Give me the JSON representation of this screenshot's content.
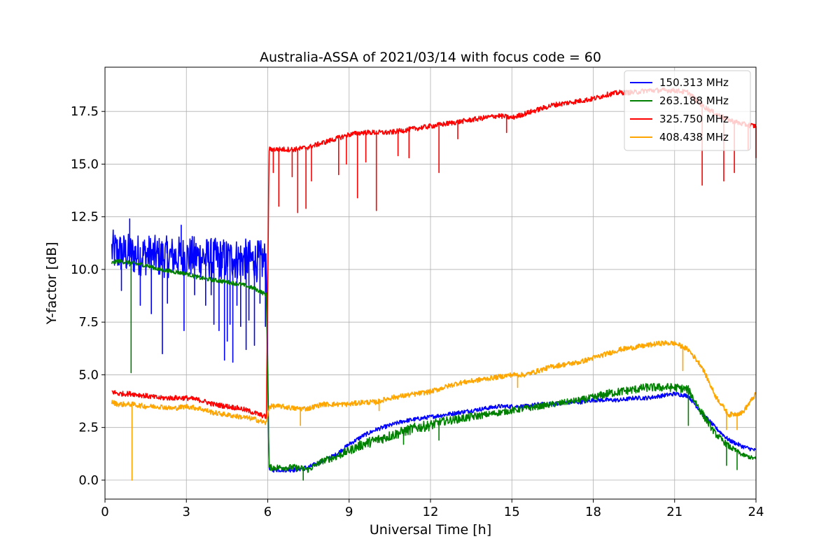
{
  "chart_data": {
    "type": "line",
    "title": "Australia-ASSA of 2021/03/14 with focus code = 60",
    "xlabel": "Universal Time [h]",
    "ylabel": "Y-factor [dB]",
    "xlim": [
      0,
      24
    ],
    "ylim": [
      -0.9,
      19.6
    ],
    "xticks": [
      0,
      3,
      6,
      9,
      12,
      15,
      18,
      21,
      24
    ],
    "xtick_labels": [
      "0",
      "3",
      "6",
      "9",
      "12",
      "15",
      "18",
      "21",
      "24"
    ],
    "yticks": [
      0,
      2.5,
      5,
      7.5,
      10,
      12.5,
      15,
      17.5
    ],
    "ytick_labels": [
      "0.0",
      "2.5",
      "5.0",
      "7.5",
      "10.0",
      "12.5",
      "15.0",
      "17.5"
    ],
    "grid": true,
    "legend_position": "top-right",
    "series": [
      {
        "name": "150.313 MHz",
        "color": "#0000ff",
        "x": [
          0.25,
          0.5,
          1,
          1.5,
          2,
          2.5,
          3,
          3.5,
          4,
          4.5,
          5,
          5.5,
          5.95,
          6.05,
          6.5,
          7,
          7.5,
          8,
          8.5,
          9,
          9.5,
          10,
          10.5,
          11,
          11.5,
          12,
          12.5,
          13,
          13.5,
          14,
          14.5,
          15,
          15.5,
          16,
          16.5,
          17,
          17.5,
          18,
          18.5,
          19,
          19.5,
          20,
          20.5,
          21,
          21.5,
          22,
          22.5,
          23,
          23.5,
          24
        ],
        "y": [
          10.9,
          10.8,
          10.7,
          10.7,
          10.6,
          10.6,
          10.6,
          10.6,
          10.5,
          10.5,
          10.5,
          10.4,
          10.4,
          0.5,
          0.5,
          0.5,
          0.6,
          0.9,
          1.2,
          1.7,
          2.1,
          2.4,
          2.6,
          2.8,
          2.9,
          3.0,
          3.1,
          3.2,
          3.3,
          3.4,
          3.5,
          3.5,
          3.5,
          3.6,
          3.6,
          3.7,
          3.7,
          3.8,
          3.8,
          3.8,
          3.9,
          3.9,
          4.0,
          4.1,
          4.0,
          3.2,
          2.5,
          1.9,
          1.6,
          1.4
        ],
        "spread": [
          1.0,
          1.0,
          1.0,
          1.0,
          1.0,
          1.0,
          1.0,
          1.0,
          1.0,
          1.0,
          1.0,
          1.0,
          1.0,
          0.12,
          0.12,
          0.12,
          0.12,
          0.1,
          0.1,
          0.1,
          0.1,
          0.1,
          0.1,
          0.1,
          0.1,
          0.1,
          0.1,
          0.1,
          0.1,
          0.1,
          0.1,
          0.1,
          0.1,
          0.1,
          0.1,
          0.1,
          0.1,
          0.1,
          0.1,
          0.1,
          0.1,
          0.1,
          0.1,
          0.1,
          0.1,
          0.1,
          0.1,
          0.1,
          0.1,
          0.1
        ],
        "dips": [
          [
            0.6,
            9.0
          ],
          [
            1.3,
            8.3
          ],
          [
            1.7,
            7.9
          ],
          [
            2.1,
            6.0
          ],
          [
            2.3,
            8.4
          ],
          [
            2.9,
            7.1
          ],
          [
            3.3,
            8.8
          ],
          [
            3.7,
            8.3
          ],
          [
            3.9,
            8.8
          ],
          [
            4.0,
            7.4
          ],
          [
            4.2,
            7.1
          ],
          [
            4.4,
            5.7
          ],
          [
            4.5,
            6.6
          ],
          [
            4.6,
            7.4
          ],
          [
            4.7,
            5.6
          ],
          [
            4.85,
            8.3
          ],
          [
            5.0,
            7.3
          ],
          [
            5.2,
            6.2
          ],
          [
            5.3,
            7.6
          ],
          [
            5.5,
            6.4
          ],
          [
            5.7,
            8.4
          ],
          [
            5.9,
            7.3
          ]
        ],
        "spikes": [
          [
            0.9,
            12.4
          ],
          [
            2.8,
            12.1
          ]
        ]
      },
      {
        "name": "263.188 MHz",
        "color": "#008000",
        "x": [
          0.25,
          0.5,
          1,
          1.5,
          2,
          2.5,
          3,
          3.5,
          4,
          4.5,
          5,
          5.5,
          5.95,
          6.05,
          6.5,
          7,
          7.5,
          8,
          8.5,
          9,
          9.5,
          10,
          10.5,
          11,
          11.5,
          12,
          12.5,
          13,
          13.5,
          14,
          14.5,
          15,
          15.5,
          16,
          16.5,
          17,
          17.5,
          18,
          18.5,
          19,
          19.5,
          20,
          20.5,
          21,
          21.5,
          22,
          22.5,
          23,
          23.5,
          24
        ],
        "y": [
          10.3,
          10.4,
          10.3,
          10.2,
          10.0,
          9.9,
          9.8,
          9.6,
          9.5,
          9.4,
          9.3,
          9.1,
          8.8,
          0.6,
          0.6,
          0.6,
          0.5,
          0.9,
          1.1,
          1.4,
          1.7,
          1.9,
          2.1,
          2.3,
          2.5,
          2.6,
          2.8,
          2.9,
          3.0,
          3.1,
          3.2,
          3.3,
          3.4,
          3.5,
          3.6,
          3.7,
          3.8,
          3.9,
          4.1,
          4.2,
          4.3,
          4.4,
          4.4,
          4.4,
          4.3,
          3.2,
          2.2,
          1.6,
          1.2,
          1.0
        ],
        "spread": [
          0.1,
          0.1,
          0.1,
          0.1,
          0.1,
          0.1,
          0.1,
          0.1,
          0.1,
          0.1,
          0.1,
          0.1,
          0.1,
          0.15,
          0.15,
          0.15,
          0.15,
          0.15,
          0.18,
          0.2,
          0.25,
          0.25,
          0.25,
          0.25,
          0.25,
          0.25,
          0.2,
          0.2,
          0.2,
          0.15,
          0.15,
          0.15,
          0.15,
          0.15,
          0.15,
          0.15,
          0.15,
          0.2,
          0.2,
          0.2,
          0.2,
          0.2,
          0.2,
          0.2,
          0.2,
          0.2,
          0.15,
          0.15,
          0.1,
          0.1
        ],
        "dips": [
          [
            0.95,
            5.1
          ],
          [
            7.3,
            0.0
          ],
          [
            11.0,
            1.7
          ],
          [
            12.3,
            1.9
          ],
          [
            21.5,
            2.6
          ],
          [
            22.9,
            0.7
          ],
          [
            23.3,
            0.5
          ]
        ],
        "spikes": []
      },
      {
        "name": "325.750 MHz",
        "color": "#ff0000",
        "x": [
          0.25,
          0.5,
          1,
          1.5,
          2,
          2.5,
          3,
          3.5,
          4,
          4.5,
          5,
          5.5,
          5.95,
          6.05,
          6.5,
          7,
          7.5,
          8,
          8.5,
          9,
          9.5,
          10,
          10.5,
          11,
          11.5,
          12,
          12.5,
          13,
          13.5,
          14,
          14.5,
          15,
          15.5,
          16,
          16.5,
          17,
          17.5,
          18,
          18.5,
          19,
          19.5,
          20,
          20.5,
          21,
          21.5,
          22,
          22.5,
          23,
          23.5,
          24
        ],
        "y": [
          4.2,
          4.1,
          4.1,
          4.0,
          3.9,
          3.9,
          3.9,
          3.8,
          3.6,
          3.5,
          3.4,
          3.2,
          3.0,
          15.7,
          15.7,
          15.7,
          15.8,
          16.0,
          16.2,
          16.4,
          16.5,
          16.5,
          16.5,
          16.6,
          16.7,
          16.8,
          16.9,
          17.0,
          17.1,
          17.2,
          17.3,
          17.2,
          17.4,
          17.6,
          17.8,
          17.9,
          18.0,
          18.1,
          18.3,
          18.4,
          18.4,
          18.5,
          18.5,
          18.5,
          18.4,
          17.8,
          17.4,
          17.1,
          16.9,
          16.8
        ],
        "spread": [
          0.12,
          0.12,
          0.12,
          0.12,
          0.12,
          0.12,
          0.12,
          0.12,
          0.12,
          0.12,
          0.12,
          0.12,
          0.12,
          0.12,
          0.12,
          0.12,
          0.12,
          0.12,
          0.12,
          0.12,
          0.12,
          0.12,
          0.12,
          0.12,
          0.12,
          0.12,
          0.12,
          0.12,
          0.12,
          0.12,
          0.12,
          0.12,
          0.12,
          0.12,
          0.12,
          0.12,
          0.12,
          0.12,
          0.12,
          0.12,
          0.12,
          0.12,
          0.12,
          0.12,
          0.12,
          0.12,
          0.12,
          0.12,
          0.12,
          0.12
        ],
        "dips": [
          [
            6.2,
            14.6
          ],
          [
            6.4,
            13.0
          ],
          [
            6.9,
            14.4
          ],
          [
            7.1,
            12.7
          ],
          [
            7.4,
            12.9
          ],
          [
            7.6,
            14.2
          ],
          [
            8.6,
            14.5
          ],
          [
            8.9,
            15.0
          ],
          [
            9.3,
            13.4
          ],
          [
            9.6,
            15.1
          ],
          [
            10.0,
            12.8
          ],
          [
            10.8,
            15.4
          ],
          [
            11.2,
            15.3
          ],
          [
            12.3,
            14.6
          ],
          [
            13.0,
            16.2
          ],
          [
            14.8,
            16.5
          ],
          [
            22.0,
            14.0
          ],
          [
            22.8,
            14.2
          ],
          [
            23.2,
            14.6
          ],
          [
            23.7,
            15.7
          ],
          [
            24.0,
            15.3
          ]
        ],
        "spikes": []
      },
      {
        "name": "408.438 MHz",
        "color": "#ffa500",
        "x": [
          0.25,
          0.5,
          1,
          1.5,
          2,
          2.5,
          3,
          3.5,
          4,
          4.5,
          5,
          5.5,
          5.95,
          6.05,
          6.5,
          7,
          7.5,
          8,
          8.5,
          9,
          9.5,
          10,
          10.5,
          11,
          11.5,
          12,
          12.5,
          13,
          13.5,
          14,
          14.5,
          15,
          15.5,
          16,
          16.5,
          17,
          17.5,
          18,
          18.5,
          19,
          19.5,
          20,
          20.5,
          21,
          21.5,
          22,
          22.5,
          23,
          23.5,
          24
        ],
        "y": [
          3.7,
          3.6,
          3.6,
          3.5,
          3.5,
          3.4,
          3.5,
          3.4,
          3.2,
          3.1,
          3.0,
          2.9,
          2.7,
          3.5,
          3.5,
          3.4,
          3.4,
          3.6,
          3.6,
          3.6,
          3.7,
          3.7,
          3.9,
          4.0,
          4.1,
          4.2,
          4.4,
          4.6,
          4.7,
          4.8,
          4.9,
          5.0,
          5.0,
          5.2,
          5.4,
          5.5,
          5.6,
          5.8,
          6.0,
          6.2,
          6.3,
          6.4,
          6.5,
          6.5,
          6.2,
          5.4,
          4.0,
          3.1,
          3.2,
          4.1
        ],
        "spread": [
          0.12,
          0.12,
          0.12,
          0.12,
          0.12,
          0.12,
          0.12,
          0.12,
          0.12,
          0.12,
          0.12,
          0.12,
          0.12,
          0.12,
          0.12,
          0.12,
          0.12,
          0.12,
          0.12,
          0.12,
          0.12,
          0.12,
          0.12,
          0.12,
          0.12,
          0.12,
          0.12,
          0.12,
          0.12,
          0.12,
          0.12,
          0.12,
          0.12,
          0.12,
          0.12,
          0.12,
          0.12,
          0.12,
          0.12,
          0.12,
          0.12,
          0.12,
          0.12,
          0.12,
          0.12,
          0.12,
          0.12,
          0.12,
          0.12,
          0.12
        ],
        "dips": [
          [
            0.98,
            0.0
          ],
          [
            7.2,
            2.6
          ],
          [
            10.1,
            3.3
          ],
          [
            15.2,
            4.4
          ],
          [
            21.3,
            5.2
          ],
          [
            22.9,
            2.4
          ],
          [
            23.3,
            2.4
          ]
        ],
        "spikes": []
      }
    ]
  }
}
